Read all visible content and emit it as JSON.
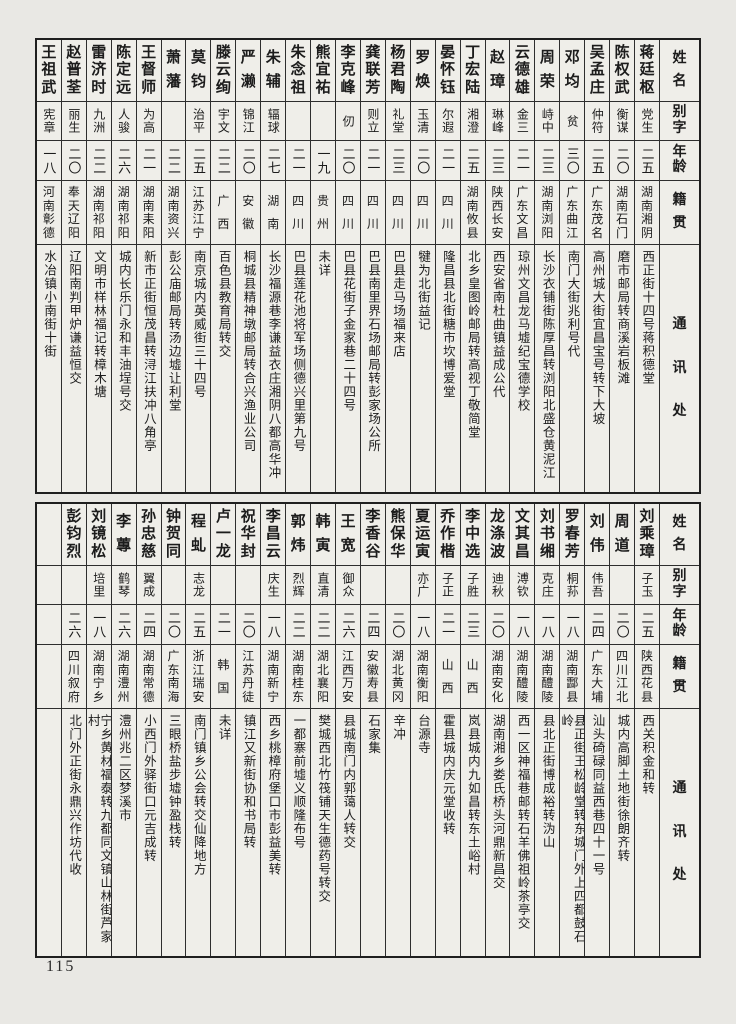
{
  "page": {
    "number": "115"
  },
  "colors": {
    "paper": "#e9e8e4",
    "table_paper": "#efeee9",
    "rule_line": "#2e2e2e",
    "ink": "#1c1c1c"
  },
  "header_labels": {
    "name": "姓名",
    "zi": "别字",
    "age": "年龄",
    "native": "籍贯",
    "address": "通讯处"
  },
  "tables": [
    {
      "id": "table-top",
      "empty_trailing_columns": 0,
      "people": [
        {
          "name": "蒋廷枢",
          "zi": "党生",
          "age": "二五",
          "native": "湖南湘阴",
          "addr": "西正街十四号蒋积德堂"
        },
        {
          "name": "陈权武",
          "zi": "衡谋",
          "age": "二〇",
          "native": "湖南石门",
          "addr": "磨市邮局转商溪岩板滩"
        },
        {
          "name": "吴孟庄",
          "zi": "仲符",
          "age": "二五",
          "native": "广东茂名",
          "addr": "高州城大街宜昌宝号转下大坡"
        },
        {
          "name": "邓均",
          "zi": "贫",
          "age": "三〇",
          "native": "广东曲江",
          "addr": "南门大街兆利号代"
        },
        {
          "name": "周荣",
          "zi": "峙中",
          "age": "二三",
          "native": "湖南浏阳",
          "addr": "长沙衣铺街陈厚昌转浏阳北盛仓黄泥江"
        },
        {
          "name": "云德雄",
          "zi": "金三",
          "age": "二一",
          "native": "广东文昌",
          "addr": "琼州文昌龙马墟纪宝德学校"
        },
        {
          "name": "赵璋",
          "zi": "琳峰",
          "age": "二三",
          "native": "陕西长安",
          "addr": "西安省南杜曲镇益成公代"
        },
        {
          "name": "丁宏陆",
          "zi": "湘澄",
          "age": "二五",
          "native": "湖南攸县",
          "addr": "北乡皇图岭邮局转高视丁敬简堂"
        },
        {
          "name": "晏怀钰",
          "zi": "尔遐",
          "age": "二一",
          "native": "四川",
          "addr": "隆昌县北街糖市坎博爱堂"
        },
        {
          "name": "罗焕",
          "zi": "玉清",
          "age": "二〇",
          "native": "四川",
          "addr": "犍为北街益记"
        },
        {
          "name": "杨君陶",
          "zi": "礼堂",
          "age": "二三",
          "native": "四川",
          "addr": "巴县走马场福来店"
        },
        {
          "name": "龚联芳",
          "zi": "则立",
          "age": "二一",
          "native": "四川",
          "addr": "巴县南里界石场邮局转彭家场公所"
        },
        {
          "name": "李克峰",
          "zi": "仞",
          "age": "二〇",
          "native": "四川",
          "addr": "巴县花街子金家巷二十四号"
        },
        {
          "name": "熊宜祐",
          "zi": "",
          "age": "一九",
          "native": "贵州",
          "addr": "未详"
        },
        {
          "name": "朱念祖",
          "zi": "",
          "age": "二一",
          "native": "四川",
          "addr": "巴县莲花池将军场侧德兴里第九号"
        },
        {
          "name": "朱辅",
          "zi": "辐球",
          "age": "二七",
          "native": "湖南",
          "addr": "长沙福源巷李谦益衣庄湘阴八都高华冲"
        },
        {
          "name": "严濑",
          "zi": "锦江",
          "age": "二〇",
          "native": "安徽",
          "addr": "桐城县精神墩邮局转合兴渔业公司"
        },
        {
          "name": "滕云绚",
          "zi": "宇文",
          "age": "二二",
          "native": "广西",
          "addr": "百色县教育局转交"
        },
        {
          "name": "莫钧",
          "zi": "治平",
          "age": "二五",
          "native": "江苏江宁",
          "addr": "南京城内英威街三十四号"
        },
        {
          "name": "萧藩",
          "zi": "",
          "age": "二二",
          "native": "湖南资兴",
          "addr": "彭公庙邮局转汤边墟让利堂"
        },
        {
          "name": "王督师",
          "zi": "为高",
          "age": "二一",
          "native": "湖南耒阳",
          "addr": "新市正街恒茂昌转浔江扶冲八角亭"
        },
        {
          "name": "陈定远",
          "zi": "人骏",
          "age": "二六",
          "native": "湖南祁阳",
          "addr": "城内长乐门永和丰油埕号交"
        },
        {
          "name": "雷济时",
          "zi": "九洲",
          "age": "二二",
          "native": "湖南祁阳",
          "addr": "文明市样林福记转樟木塘"
        },
        {
          "name": "赵普荃",
          "zi": "丽生",
          "age": "二〇",
          "native": "奉天辽阳",
          "addr": "辽阳南判甲炉谦益恒交"
        },
        {
          "name": "王祖武",
          "zi": "宪章",
          "age": "一八",
          "native": "河南彰德",
          "addr": "水冶镇小南街十街"
        }
      ]
    },
    {
      "id": "table-bottom",
      "empty_trailing_columns": 1,
      "people": [
        {
          "name": "刘乘璋",
          "zi": "子玉",
          "age": "二五",
          "native": "陕西花县",
          "addr": "西关积金和转"
        },
        {
          "name": "周道",
          "zi": "",
          "age": "二〇",
          "native": "四川江北",
          "addr": "城内高脚土地街徐朗齐转"
        },
        {
          "name": "刘伟",
          "zi": "伟吾",
          "age": "二四",
          "native": "广东大埔",
          "addr": "汕头碕碌同益西巷四十一号"
        },
        {
          "name": "罗春芳",
          "zi": "桐荪",
          "age": "一八",
          "native": "湖南酃县",
          "addr": "县正街王松龄堂转东城门外上四都鼓石岭"
        },
        {
          "name": "刘书缃",
          "zi": "克庄",
          "age": "一八",
          "native": "湖南醴陵",
          "addr": "县北正街博成裕转沩山"
        },
        {
          "name": "文其昌",
          "zi": "溥钦",
          "age": "一八",
          "native": "湖南醴陵",
          "addr": "西一区神福巷邮转石羊佛祖岭茶亭交"
        },
        {
          "name": "龙涤波",
          "zi": "迪秋",
          "age": "二〇",
          "native": "湖南安化",
          "addr": "湖南湘乡娄氏桥头河鼎新昌交"
        },
        {
          "name": "李中选",
          "zi": "子胜",
          "age": "二三",
          "native": "山西",
          "addr": "岚县城内九如昌转东土峪村"
        },
        {
          "name": "乔作楷",
          "zi": "子正",
          "age": "二一",
          "native": "山西",
          "addr": "霍县城内庆元堂收转"
        },
        {
          "name": "夏运寅",
          "zi": "亦广",
          "age": "一八",
          "native": "湖南衡阳",
          "addr": "台源寺"
        },
        {
          "name": "熊保华",
          "zi": "",
          "age": "二〇",
          "native": "湖北黄冈",
          "addr": "辛冲"
        },
        {
          "name": "李香谷",
          "zi": "",
          "age": "二四",
          "native": "安徽寿县",
          "addr": "石家集"
        },
        {
          "name": "王宽",
          "zi": "御众",
          "age": "二六",
          "native": "江西万安",
          "addr": "县城南门内郭蔼人转交"
        },
        {
          "name": "韩寅",
          "zi": "直清",
          "age": "二二",
          "native": "湖北襄阳",
          "addr": "樊城西北竹筏铺天生德药号转交"
        },
        {
          "name": "郭炜",
          "zi": "烈辉",
          "age": "二二",
          "native": "湖南桂东",
          "addr": "一都寨前墟义顺隆布号"
        },
        {
          "name": "李昌云",
          "zi": "庆生",
          "age": "一八",
          "native": "湖南新宁",
          "addr": "西乡桃樟府堡口市彭益美转"
        },
        {
          "name": "祝华封",
          "zi": "",
          "age": "二〇",
          "native": "江苏丹徒",
          "addr": "镇江又新街协和书局转"
        },
        {
          "name": "卢一龙",
          "zi": "",
          "age": "二一",
          "native": "韩国",
          "addr": "未详"
        },
        {
          "name": "程虬",
          "zi": "志龙",
          "age": "二五",
          "native": "浙江瑞安",
          "addr": "南门镇乡公会转交仙降地方"
        },
        {
          "name": "钟贺同",
          "zi": "",
          "age": "二〇",
          "native": "广东南海",
          "addr": "三眼桥盐步墟钟盈栈转"
        },
        {
          "name": "孙忠慈",
          "zi": "翼成",
          "age": "二四",
          "native": "湖南常德",
          "addr": "小西门外驿街口元吉成转"
        },
        {
          "name": "李蓴",
          "zi": "鹤琴",
          "age": "二六",
          "native": "湖南澧州",
          "addr": "澧州兆二区梦溪市"
        },
        {
          "name": "刘镜松",
          "zi": "培里",
          "age": "一八",
          "native": "湖南宁乡",
          "addr": "宁乡黄材福泰转九都同文镇山林街芦家村"
        },
        {
          "name": "彭钧烈",
          "zi": "",
          "age": "二六",
          "native": "四川叙府",
          "addr": "北门外正街永鼎兴作坊代收"
        }
      ]
    }
  ]
}
